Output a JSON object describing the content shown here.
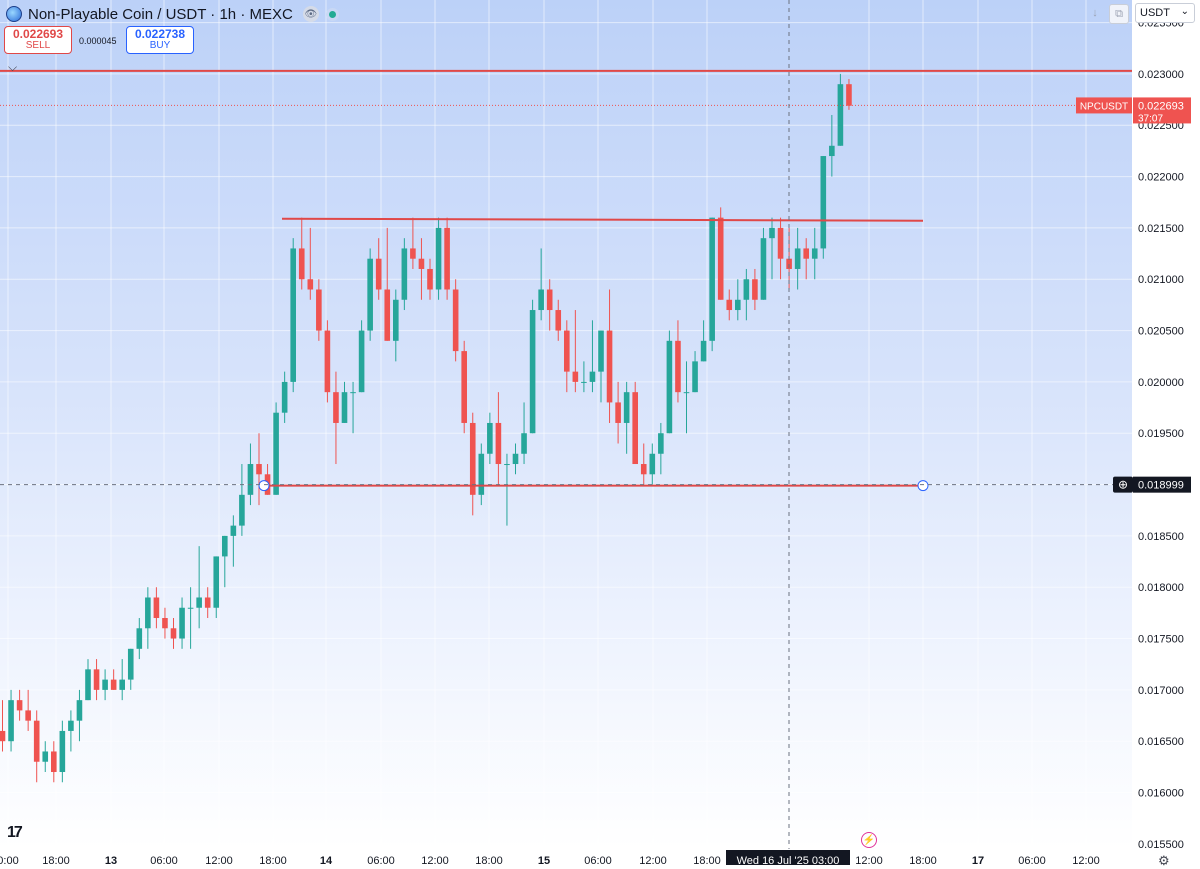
{
  "header": {
    "title": "Non-Playable Coin / USDT · 1h · MEXC",
    "sell_price": "0.022693",
    "sell_label": "SELL",
    "buy_price": "0.022738",
    "buy_label": "BUY",
    "spread": "0.000045",
    "currency": "USDT"
  },
  "chart_data": {
    "type": "candlestick",
    "symbol": "NPCUSDT",
    "interval": "1h",
    "exchange": "MEXC",
    "grid": true,
    "ylim": [
      0.01545,
      0.02372
    ],
    "y_ticks": [
      "0.023500",
      "0.023000",
      "0.022500",
      "0.022000",
      "0.021500",
      "0.021000",
      "0.020500",
      "0.020000",
      "0.019500",
      "0.019000",
      "0.018500",
      "0.018000",
      "0.017500",
      "0.017000",
      "0.016500",
      "0.016000",
      "0.015500"
    ],
    "x_tick_labels": [
      "0:00",
      "18:00",
      "13",
      "06:00",
      "12:00",
      "18:00",
      "14",
      "06:00",
      "12:00",
      "18:00",
      "15",
      "06:00",
      "12:00",
      "18:00",
      "12:00",
      "18:00",
      "17",
      "06:00",
      "12:00"
    ],
    "crosshair_time": "Wed 16 Jul '25   03:00",
    "crosshair_price": "0.018999",
    "last_price": "0.022693",
    "last_price_symbol": "NPCUSDT",
    "countdown": "37:07",
    "horizontal_lines": [
      0.02303,
      0.02158,
      0.01899
    ],
    "candles": [
      [
        0.0166,
        0.0169,
        0.0164,
        0.0165
      ],
      [
        0.0165,
        0.017,
        0.0164,
        0.0169
      ],
      [
        0.0169,
        0.017,
        0.0167,
        0.0168
      ],
      [
        0.0168,
        0.017,
        0.0166,
        0.0167
      ],
      [
        0.0167,
        0.0168,
        0.0161,
        0.0163
      ],
      [
        0.0163,
        0.0165,
        0.0162,
        0.0164
      ],
      [
        0.0164,
        0.0165,
        0.0161,
        0.0162
      ],
      [
        0.0162,
        0.0167,
        0.0161,
        0.0166
      ],
      [
        0.0166,
        0.0168,
        0.0164,
        0.0167
      ],
      [
        0.0167,
        0.017,
        0.0165,
        0.0169
      ],
      [
        0.0169,
        0.0173,
        0.0169,
        0.0172
      ],
      [
        0.0172,
        0.0173,
        0.0169,
        0.017
      ],
      [
        0.017,
        0.0172,
        0.0169,
        0.0171
      ],
      [
        0.0171,
        0.0172,
        0.017,
        0.017
      ],
      [
        0.017,
        0.0173,
        0.0169,
        0.0171
      ],
      [
        0.0171,
        0.0174,
        0.017,
        0.0174
      ],
      [
        0.0174,
        0.0177,
        0.0173,
        0.0176
      ],
      [
        0.0176,
        0.018,
        0.0174,
        0.0179
      ],
      [
        0.0179,
        0.018,
        0.0176,
        0.0177
      ],
      [
        0.0177,
        0.0178,
        0.0175,
        0.0176
      ],
      [
        0.0176,
        0.0177,
        0.0174,
        0.0175
      ],
      [
        0.0175,
        0.0179,
        0.0174,
        0.0178
      ],
      [
        0.0178,
        0.018,
        0.0174,
        0.0178
      ],
      [
        0.0178,
        0.0184,
        0.0176,
        0.0179
      ],
      [
        0.0179,
        0.018,
        0.0177,
        0.0178
      ],
      [
        0.0178,
        0.0183,
        0.0177,
        0.0183
      ],
      [
        0.0183,
        0.0185,
        0.018,
        0.0185
      ],
      [
        0.0185,
        0.0187,
        0.0182,
        0.0186
      ],
      [
        0.0186,
        0.0192,
        0.0185,
        0.0189
      ],
      [
        0.0189,
        0.0194,
        0.0188,
        0.0192
      ],
      [
        0.0192,
        0.0195,
        0.0188,
        0.0191
      ],
      [
        0.0191,
        0.0192,
        0.0189,
        0.0189
      ],
      [
        0.0189,
        0.0198,
        0.0189,
        0.0197
      ],
      [
        0.0197,
        0.0201,
        0.0196,
        0.02
      ],
      [
        0.02,
        0.0214,
        0.0199,
        0.0213
      ],
      [
        0.0213,
        0.0216,
        0.0209,
        0.021
      ],
      [
        0.021,
        0.0215,
        0.0208,
        0.0209
      ],
      [
        0.0209,
        0.021,
        0.0204,
        0.0205
      ],
      [
        0.0205,
        0.0206,
        0.0198,
        0.0199
      ],
      [
        0.0199,
        0.0201,
        0.0192,
        0.0196
      ],
      [
        0.0196,
        0.02,
        0.0196,
        0.0199
      ],
      [
        0.0199,
        0.02,
        0.0195,
        0.0199
      ],
      [
        0.0199,
        0.0206,
        0.0199,
        0.0205
      ],
      [
        0.0205,
        0.0213,
        0.0204,
        0.0212
      ],
      [
        0.0212,
        0.0214,
        0.0208,
        0.0209
      ],
      [
        0.0209,
        0.0215,
        0.0204,
        0.0204
      ],
      [
        0.0204,
        0.0209,
        0.0202,
        0.0208
      ],
      [
        0.0208,
        0.0214,
        0.0207,
        0.0213
      ],
      [
        0.0213,
        0.0216,
        0.0211,
        0.0212
      ],
      [
        0.0212,
        0.0214,
        0.0208,
        0.0211
      ],
      [
        0.0211,
        0.0212,
        0.0208,
        0.0209
      ],
      [
        0.0209,
        0.0216,
        0.0208,
        0.0215
      ],
      [
        0.0215,
        0.0216,
        0.0208,
        0.0209
      ],
      [
        0.0209,
        0.021,
        0.0202,
        0.0203
      ],
      [
        0.0203,
        0.0204,
        0.0195,
        0.0196
      ],
      [
        0.0196,
        0.0197,
        0.0187,
        0.0189
      ],
      [
        0.0189,
        0.0194,
        0.0188,
        0.0193
      ],
      [
        0.0193,
        0.0197,
        0.0192,
        0.0196
      ],
      [
        0.0196,
        0.0199,
        0.019,
        0.0192
      ],
      [
        0.0192,
        0.0193,
        0.0186,
        0.0192
      ],
      [
        0.0192,
        0.0194,
        0.0191,
        0.0193
      ],
      [
        0.0193,
        0.0198,
        0.0192,
        0.0195
      ],
      [
        0.0195,
        0.0208,
        0.0195,
        0.0207
      ],
      [
        0.0207,
        0.0213,
        0.0206,
        0.0209
      ],
      [
        0.0209,
        0.021,
        0.0205,
        0.0207
      ],
      [
        0.0207,
        0.0208,
        0.0204,
        0.0205
      ],
      [
        0.0205,
        0.0206,
        0.0199,
        0.0201
      ],
      [
        0.0201,
        0.0207,
        0.0199,
        0.02
      ],
      [
        0.02,
        0.0202,
        0.0199,
        0.02
      ],
      [
        0.02,
        0.0206,
        0.0199,
        0.0201
      ],
      [
        0.0201,
        0.0205,
        0.0198,
        0.0205
      ],
      [
        0.0205,
        0.0209,
        0.0196,
        0.0198
      ],
      [
        0.0198,
        0.02,
        0.0194,
        0.0196
      ],
      [
        0.0196,
        0.02,
        0.0193,
        0.0199
      ],
      [
        0.0199,
        0.02,
        0.0192,
        0.0192
      ],
      [
        0.0192,
        0.0194,
        0.019,
        0.0191
      ],
      [
        0.0191,
        0.0194,
        0.019,
        0.0193
      ],
      [
        0.0193,
        0.0196,
        0.0191,
        0.0195
      ],
      [
        0.0195,
        0.0205,
        0.0195,
        0.0204
      ],
      [
        0.0204,
        0.0206,
        0.0198,
        0.0199
      ],
      [
        0.0199,
        0.0202,
        0.0195,
        0.0199
      ],
      [
        0.0199,
        0.0203,
        0.0199,
        0.0202
      ],
      [
        0.0202,
        0.0206,
        0.0202,
        0.0204
      ],
      [
        0.0204,
        0.0216,
        0.0203,
        0.0216
      ],
      [
        0.0216,
        0.0217,
        0.0208,
        0.0208
      ],
      [
        0.0208,
        0.0209,
        0.0206,
        0.0207
      ],
      [
        0.0207,
        0.021,
        0.0206,
        0.0208
      ],
      [
        0.0208,
        0.0211,
        0.0206,
        0.021
      ],
      [
        0.021,
        0.0211,
        0.0207,
        0.0208
      ],
      [
        0.0208,
        0.0215,
        0.0208,
        0.0214
      ],
      [
        0.0214,
        0.0216,
        0.021,
        0.0215
      ],
      [
        0.0215,
        0.0216,
        0.021,
        0.0212
      ],
      [
        0.0212,
        0.0215,
        0.0209,
        0.0211
      ],
      [
        0.0211,
        0.0215,
        0.0209,
        0.0213
      ],
      [
        0.0213,
        0.0214,
        0.021,
        0.0212
      ],
      [
        0.0212,
        0.0215,
        0.021,
        0.0213
      ],
      [
        0.0213,
        0.0222,
        0.0212,
        0.0222
      ],
      [
        0.0222,
        0.0226,
        0.022,
        0.0223
      ],
      [
        0.0223,
        0.023,
        0.0223,
        0.0229
      ],
      [
        0.0229,
        0.02295,
        0.02265,
        0.02269
      ]
    ]
  }
}
